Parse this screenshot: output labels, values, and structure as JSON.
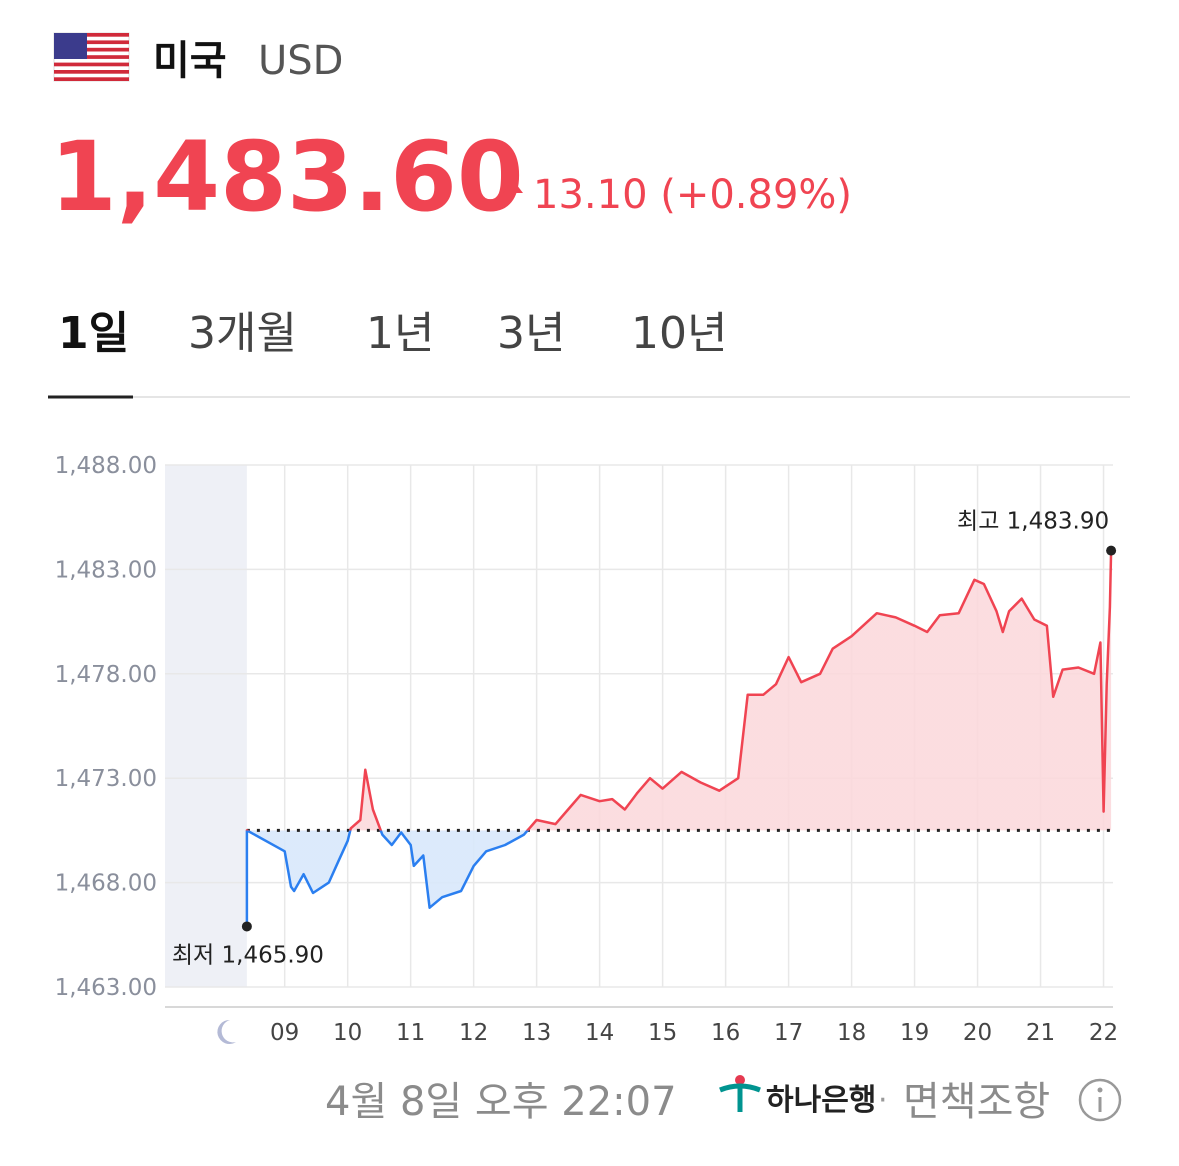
{
  "header": {
    "country": "미국",
    "currency": "USD",
    "price": "1,483.60",
    "change": "13.10 (+0.89%)"
  },
  "tabs": {
    "items": [
      "1일",
      "3개월",
      "1년",
      "3년",
      "10년"
    ],
    "selected": 0
  },
  "chart_data": {
    "type": "line",
    "series": [
      {
        "color": "#f04452",
        "down_color": "#2b7ff0",
        "x": [
          8.4,
          8.4,
          9.0,
          9.1,
          9.15,
          9.3,
          9.45,
          9.7,
          9.85,
          10.0,
          10.05,
          10.2,
          10.28,
          10.4,
          10.55,
          10.7,
          10.85,
          11.0,
          11.05,
          11.2,
          11.3,
          11.5,
          11.8,
          12.0,
          12.2,
          12.5,
          12.8,
          13.0,
          13.3,
          13.5,
          13.7,
          14.0,
          14.2,
          14.4,
          14.6,
          14.8,
          15.0,
          15.3,
          15.6,
          15.9,
          16.2,
          16.35,
          16.6,
          16.8,
          17.0,
          17.2,
          17.5,
          17.7,
          18.0,
          18.4,
          18.7,
          19.0,
          19.2,
          19.4,
          19.7,
          19.95,
          20.1,
          20.3,
          20.4,
          20.5,
          20.7,
          20.9,
          21.1,
          21.2,
          21.35,
          21.6,
          21.85,
          21.95,
          22.0,
          22.05,
          22.1,
          22.12
        ],
        "values": [
          1465.9,
          1470.5,
          1469.5,
          1467.8,
          1467.6,
          1468.4,
          1467.5,
          1468.0,
          1469.0,
          1470.0,
          1470.6,
          1471.0,
          1473.4,
          1471.5,
          1470.3,
          1469.8,
          1470.4,
          1469.8,
          1468.8,
          1469.3,
          1466.8,
          1467.3,
          1467.6,
          1468.8,
          1469.5,
          1469.8,
          1470.3,
          1471.0,
          1470.8,
          1471.5,
          1472.2,
          1471.9,
          1472.0,
          1471.5,
          1472.3,
          1473.0,
          1472.5,
          1473.3,
          1472.8,
          1472.4,
          1473.0,
          1477.0,
          1477.0,
          1477.5,
          1478.8,
          1477.6,
          1478.0,
          1479.2,
          1479.8,
          1480.9,
          1480.7,
          1480.3,
          1480.0,
          1480.8,
          1480.9,
          1482.5,
          1482.3,
          1481.0,
          1480.0,
          1481.0,
          1481.6,
          1480.6,
          1480.3,
          1476.9,
          1478.2,
          1478.3,
          1478.0,
          1479.5,
          1471.4,
          1477.5,
          1481.2,
          1483.9
        ]
      }
    ],
    "baseline": 1470.5,
    "annotations": [
      {
        "label": "최저 1,465.90",
        "index": 0
      },
      {
        "label": "최고 1,483.90",
        "index": 71
      }
    ],
    "xlim": [
      7.1,
      22.15
    ],
    "xticks": [
      {
        "value": 9,
        "label": "09"
      },
      10,
      11,
      12,
      13,
      14,
      15,
      16,
      17,
      18,
      19,
      20,
      21,
      22
    ],
    "ylim": [
      1463,
      1488
    ],
    "yticks": [
      {
        "value": 1463,
        "label": "1,463.00"
      },
      {
        "value": 1468,
        "label": "1,468.00"
      },
      {
        "value": 1473,
        "label": "1,473.00"
      },
      {
        "value": 1478,
        "label": "1,478.00"
      },
      {
        "value": 1483,
        "label": "1,483.00"
      },
      {
        "value": 1488,
        "label": "1,488.00"
      }
    ],
    "grid": true
  },
  "footer": {
    "timestamp": "4월 8일 오후 22:07",
    "bank": "하나은행",
    "separator": "·",
    "disclaimer": "면책조항"
  }
}
